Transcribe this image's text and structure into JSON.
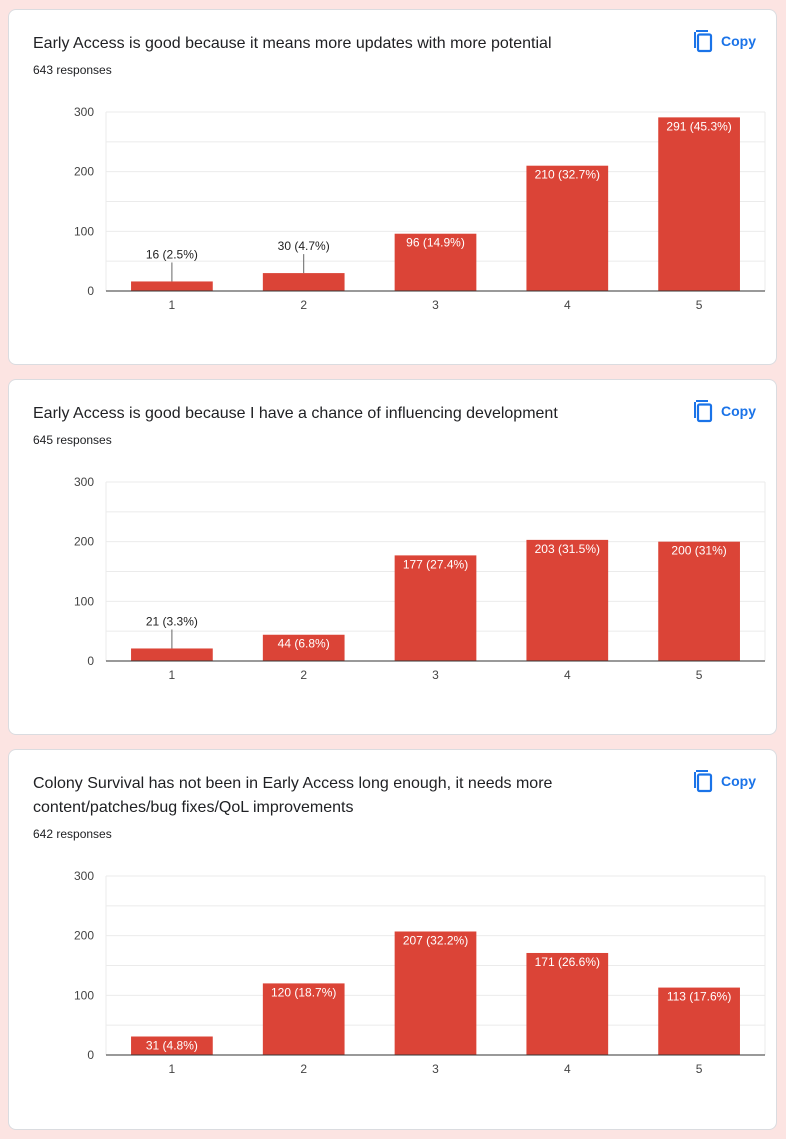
{
  "colors": {
    "bar": "#db4437",
    "copy": "#1a73e8",
    "grid": "#ebebeb",
    "axis": "#333333"
  },
  "copy_icon": "copy-icon",
  "cards": [
    {
      "title": "Early Access is good because it means more updates with more potential",
      "responses": "643 responses",
      "copy_label": "Copy"
    },
    {
      "title": "Early Access is good because I have a chance of influencing development",
      "responses": "645 responses",
      "copy_label": "Copy"
    },
    {
      "title": "Colony Survival has not been in Early Access long enough, it needs more content/patches/bug fixes/QoL improvements",
      "responses": "642 responses",
      "copy_label": "Copy"
    }
  ],
  "chart_data": [
    {
      "type": "bar",
      "categories": [
        "1",
        "2",
        "3",
        "4",
        "5"
      ],
      "values": [
        16,
        30,
        96,
        210,
        291
      ],
      "labels": [
        "16 (2.5%)",
        "30 (4.7%)",
        "96 (14.9%)",
        "210 (32.7%)",
        "291 (45.3%)"
      ],
      "yticks": [
        0,
        100,
        200,
        300
      ],
      "ylim": [
        0,
        300
      ],
      "grid": true
    },
    {
      "type": "bar",
      "categories": [
        "1",
        "2",
        "3",
        "4",
        "5"
      ],
      "values": [
        21,
        44,
        177,
        203,
        200
      ],
      "labels": [
        "21 (3.3%)",
        "44 (6.8%)",
        "177 (27.4%)",
        "203 (31.5%)",
        "200 (31%)"
      ],
      "yticks": [
        0,
        100,
        200,
        300
      ],
      "ylim": [
        0,
        300
      ],
      "grid": true
    },
    {
      "type": "bar",
      "categories": [
        "1",
        "2",
        "3",
        "4",
        "5"
      ],
      "values": [
        31,
        120,
        207,
        171,
        113
      ],
      "labels": [
        "31 (4.8%)",
        "120 (18.7%)",
        "207 (32.2%)",
        "171 (26.6%)",
        "113 (17.6%)"
      ],
      "yticks": [
        0,
        100,
        200,
        300
      ],
      "ylim": [
        0,
        300
      ],
      "grid": true
    }
  ]
}
